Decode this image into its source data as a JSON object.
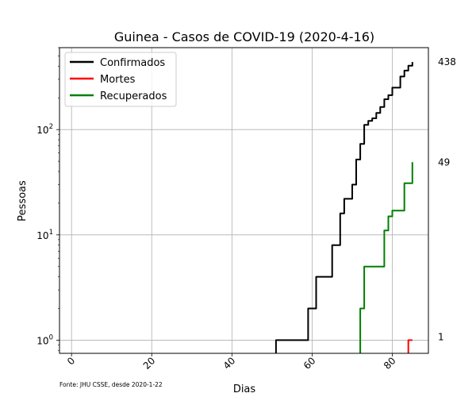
{
  "chart_data": {
    "type": "line",
    "title": "Guinea - Casos de COVID-19 (2020-4-16)",
    "xlabel": "Dias",
    "ylabel": "Pessoas",
    "xlim": [
      -3,
      89
    ],
    "ylim": [
      0.75,
      600
    ],
    "yscale": "log",
    "grid": true,
    "legend_position": "top-left",
    "xticks": [
      0,
      20,
      40,
      60,
      80
    ],
    "yticks": [
      {
        "value": 1,
        "base": "10",
        "exp": "0"
      },
      {
        "value": 10,
        "base": "10",
        "exp": "1"
      },
      {
        "value": 100,
        "base": "10",
        "exp": "2"
      }
    ],
    "footnote": "Fonte: JHU CSSE, desde 2020-1-22",
    "series": [
      {
        "name": "Confirmados",
        "color": "#000000",
        "end_label": "438",
        "x": [
          51,
          52,
          53,
          54,
          55,
          56,
          57,
          58,
          59,
          60,
          61,
          62,
          63,
          64,
          65,
          66,
          67,
          68,
          69,
          70,
          71,
          72,
          73,
          74,
          75,
          76,
          77,
          78,
          79,
          80,
          81,
          82,
          83,
          84,
          85
        ],
        "y": [
          1,
          1,
          1,
          1,
          1,
          1,
          1,
          1,
          2,
          2,
          4,
          4,
          4,
          4,
          8,
          8,
          16,
          22,
          22,
          30,
          52,
          73,
          111,
          121,
          128,
          144,
          164,
          194,
          212,
          250,
          250,
          319,
          363,
          404,
          438
        ]
      },
      {
        "name": "Mortes",
        "color": "#ff0000",
        "end_label": "1",
        "x": [
          84,
          85
        ],
        "y": [
          1,
          1
        ]
      },
      {
        "name": "Recuperados",
        "color": "#008000",
        "end_label": "49",
        "x": [
          72,
          73,
          74,
          75,
          76,
          77,
          78,
          79,
          80,
          81,
          82,
          83,
          84,
          85
        ],
        "y": [
          2,
          5,
          5,
          5,
          5,
          5,
          11,
          15,
          17,
          17,
          17,
          31,
          31,
          49
        ]
      }
    ]
  }
}
